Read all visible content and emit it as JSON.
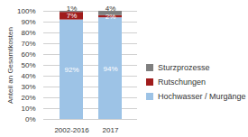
{
  "chart_data": {
    "type": "bar",
    "stacked": true,
    "data_labels": true,
    "grid": true,
    "legend": "right",
    "ylabel": "Anteil an Gesamtkosten",
    "categories": [
      "2002-2016",
      "2017"
    ],
    "series": [
      {
        "name": "Hochwasser / Murgänge",
        "color": "#9dc3e6",
        "values": [
          92,
          94
        ],
        "value_labels": [
          "92%",
          "94%"
        ]
      },
      {
        "name": "Rutschungen",
        "color": "#a01c1c",
        "values": [
          7,
          2
        ],
        "value_labels": [
          "7%",
          "2%"
        ]
      },
      {
        "name": "Sturzprozesse",
        "color": "#7f7f7f",
        "values": [
          1,
          4
        ],
        "value_labels": [
          "1%",
          "4%"
        ]
      }
    ],
    "ylim": [
      0,
      100
    ],
    "yticks": [
      {
        "value": 0,
        "label": "0%"
      },
      {
        "value": 10,
        "label": "10%"
      },
      {
        "value": 20,
        "label": "20%"
      },
      {
        "value": 30,
        "label": "30%"
      },
      {
        "value": 40,
        "label": "40%"
      },
      {
        "value": 50,
        "label": "50%"
      },
      {
        "value": 60,
        "label": "60%"
      },
      {
        "value": 70,
        "label": "70%"
      },
      {
        "value": 80,
        "label": "80%"
      },
      {
        "value": 90,
        "label": "90%"
      },
      {
        "value": 100,
        "label": "100%"
      }
    ]
  }
}
